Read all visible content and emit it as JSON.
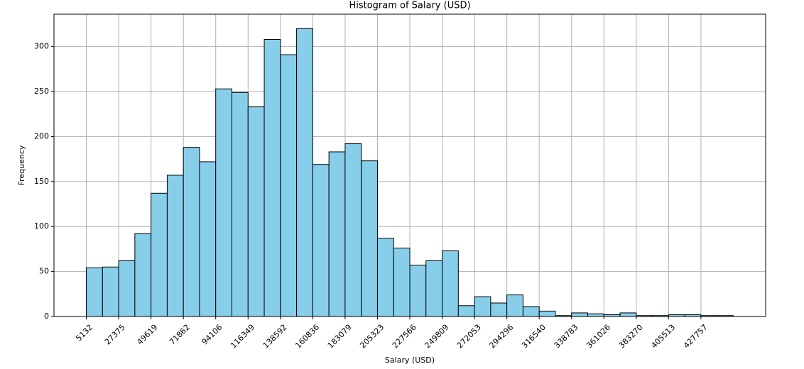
{
  "chart_data": {
    "type": "histogram",
    "title": "Histogram of Salary (USD)",
    "x_label": "Salary (USD)",
    "y_label": "Frequency",
    "bins": [
      5132,
      16254,
      27375,
      38497,
      49619,
      60741,
      71862,
      82984,
      94106,
      105227,
      116349,
      127471,
      138592,
      149714,
      160836,
      171958,
      183079,
      194201,
      205323,
      216444,
      227566,
      238688,
      249809,
      260931,
      272053,
      283175,
      294296,
      305418,
      316540,
      327661,
      338783,
      349905,
      361026,
      372148,
      383270,
      394392,
      405513,
      416635,
      427757,
      438878,
      450000
    ],
    "counts": [
      54,
      55,
      62,
      92,
      137,
      157,
      188,
      172,
      253,
      249,
      233,
      308,
      291,
      320,
      169,
      183,
      192,
      173,
      87,
      76,
      57,
      62,
      73,
      12,
      22,
      15,
      24,
      11,
      6,
      1,
      4,
      3,
      2,
      4,
      1,
      1,
      2,
      2,
      1,
      1
    ],
    "color": "#87ceeb",
    "edge_color": "#000000",
    "xlim": [
      -17111,
      472243
    ],
    "ylim": [
      0,
      336
    ],
    "xticks": [
      5132,
      27375,
      49619,
      71862,
      94106,
      116349,
      138592,
      160836,
      183079,
      205323,
      227566,
      249809,
      272053,
      294296,
      316540,
      338783,
      361026,
      383270,
      405513,
      427757
    ],
    "yticks": [
      0,
      50,
      100,
      150,
      200,
      250,
      300
    ],
    "grid": true
  }
}
